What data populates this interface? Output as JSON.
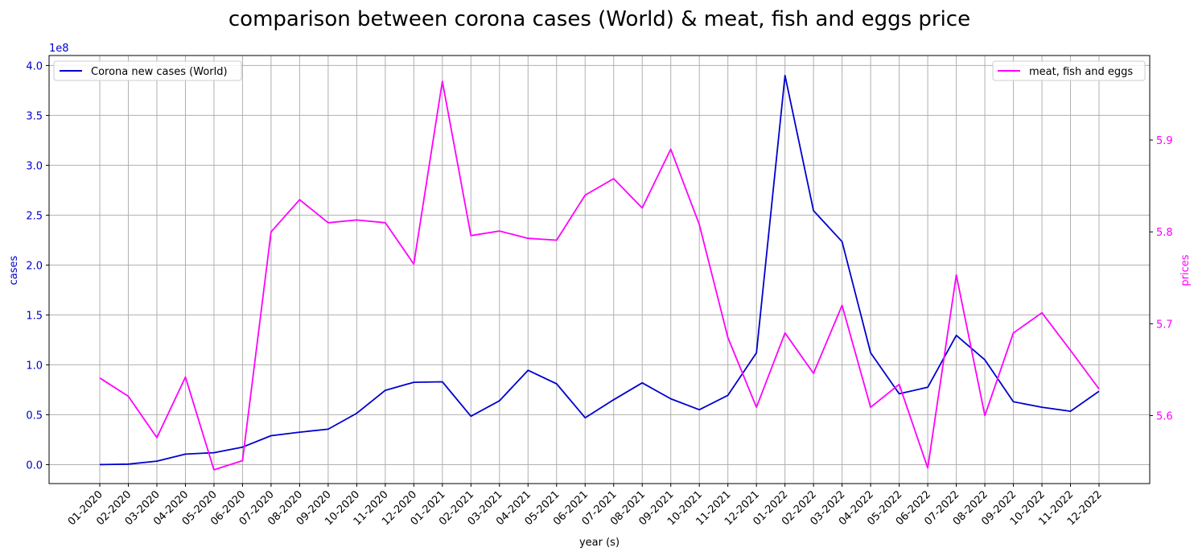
{
  "chart_data": {
    "type": "line",
    "title": "comparison between corona cases (World) & meat, fish and eggs price",
    "xlabel": "year (s)",
    "ylabel_left": "cases",
    "ylabel_right": "prices",
    "left_axis_multiplier": "1e8",
    "grid": true,
    "categories": [
      "01-2020",
      "02-2020",
      "03-2020",
      "04-2020",
      "05-2020",
      "06-2020",
      "07-2020",
      "08-2020",
      "09-2020",
      "10-2020",
      "11-2020",
      "12-2020",
      "01-2021",
      "02-2021",
      "03-2021",
      "04-2021",
      "05-2021",
      "06-2021",
      "07-2021",
      "08-2021",
      "09-2021",
      "10-2021",
      "11-2021",
      "12-2021",
      "01-2022",
      "02-2022",
      "03-2022",
      "04-2022",
      "05-2022",
      "06-2022",
      "07-2022",
      "08-2022",
      "09-2022",
      "10-2022",
      "11-2022",
      "12-2022"
    ],
    "left_ticks": [
      "0.0",
      "0.5",
      "1.0",
      "1.5",
      "2.0",
      "2.5",
      "3.0",
      "3.5",
      "4.0"
    ],
    "left_ylim": [
      -0.19,
      4.1
    ],
    "right_ticks": [
      "5.6",
      "5.7",
      "5.8",
      "5.9"
    ],
    "right_ylim": [
      5.526,
      5.992
    ],
    "series": [
      {
        "name": "Corona new cases (World)",
        "axis": "left",
        "color": "#0000cd",
        "legend_position": "upper left",
        "values": [
          0.0,
          0.005,
          0.035,
          0.105,
          0.12,
          0.175,
          0.29,
          0.325,
          0.355,
          0.515,
          0.745,
          0.825,
          0.83,
          0.485,
          0.64,
          0.945,
          0.81,
          0.47,
          0.65,
          0.82,
          0.66,
          0.55,
          0.695,
          1.12,
          3.9,
          2.545,
          2.235,
          1.12,
          0.71,
          0.775,
          1.295,
          1.05,
          0.63,
          0.575,
          0.535,
          0.735
        ]
      },
      {
        "name": "meat, fish and eggs",
        "axis": "right",
        "color": "#ff00ff",
        "legend_position": "upper right",
        "values": [
          5.641,
          5.621,
          5.576,
          5.642,
          5.541,
          5.551,
          5.8,
          5.835,
          5.81,
          5.813,
          5.81,
          5.765,
          5.964,
          5.796,
          5.801,
          5.793,
          5.791,
          5.84,
          5.858,
          5.826,
          5.89,
          5.808,
          5.685,
          5.609,
          5.69,
          5.646,
          5.72,
          5.609,
          5.634,
          5.543,
          5.753,
          5.6,
          5.69,
          5.712,
          5.671,
          5.629
        ]
      }
    ]
  }
}
